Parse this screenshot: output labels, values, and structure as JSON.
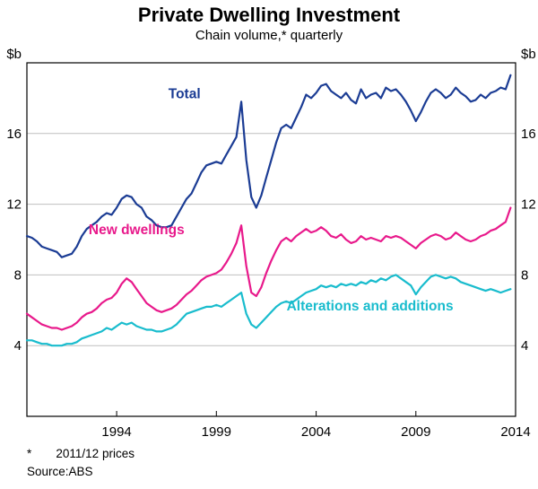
{
  "header": {
    "title": "Private Dwelling Investment",
    "subtitle": "Chain volume,* quarterly"
  },
  "axis_units": {
    "left": "$b",
    "right": "$b"
  },
  "footnotes": [
    {
      "marker": "*",
      "text": "2011/12 prices"
    },
    {
      "marker": "Source:",
      "text": "ABS"
    }
  ],
  "colors": {
    "grid": "#bfbfbf",
    "axis": "#000000",
    "total": "#1B3C94",
    "new_dwellings": "#E8198B",
    "alterations": "#19BCCD"
  },
  "chart_data": {
    "type": "line",
    "title": "Private Dwelling Investment",
    "subtitle": "Chain volume,* quarterly",
    "ylabel": "$b",
    "ylim": [
      0,
      20
    ],
    "yticks": [
      4,
      8,
      12,
      16
    ],
    "xlim": [
      1989.5,
      2014.0
    ],
    "xticks": [
      1994,
      1999,
      2004,
      2009,
      2014
    ],
    "x_start": 1989.5,
    "x_step": 0.25,
    "grid": true,
    "legend_position": "inline-labels",
    "series": [
      {
        "name": "Total",
        "color": "#1B3C94",
        "label_pos": [
          1997.4,
          18.0
        ],
        "values": [
          10.2,
          10.1,
          9.9,
          9.6,
          9.5,
          9.4,
          9.3,
          9.0,
          9.1,
          9.2,
          9.6,
          10.2,
          10.6,
          10.8,
          11.0,
          11.3,
          11.5,
          11.4,
          11.8,
          12.3,
          12.5,
          12.4,
          12.0,
          11.8,
          11.3,
          11.1,
          10.8,
          10.7,
          10.7,
          10.8,
          11.3,
          11.8,
          12.3,
          12.6,
          13.2,
          13.8,
          14.2,
          14.3,
          14.4,
          14.3,
          14.8,
          15.3,
          15.8,
          17.8,
          14.5,
          12.4,
          11.8,
          12.5,
          13.5,
          14.5,
          15.5,
          16.3,
          16.5,
          16.3,
          16.9,
          17.5,
          18.2,
          18.0,
          18.3,
          18.7,
          18.8,
          18.4,
          18.2,
          18.0,
          18.3,
          17.9,
          17.7,
          18.5,
          18.0,
          18.2,
          18.3,
          18.0,
          18.6,
          18.4,
          18.5,
          18.2,
          17.8,
          17.3,
          16.7,
          17.2,
          17.8,
          18.3,
          18.5,
          18.3,
          18.0,
          18.2,
          18.6,
          18.3,
          18.1,
          17.8,
          17.9,
          18.2,
          18.0,
          18.3,
          18.4,
          18.6,
          18.5,
          19.3
        ]
      },
      {
        "name": "New dwellings",
        "color": "#E8198B",
        "label_pos": [
          1995.0,
          10.3
        ],
        "values": [
          5.8,
          5.6,
          5.4,
          5.2,
          5.1,
          5.0,
          5.0,
          4.9,
          5.0,
          5.1,
          5.3,
          5.6,
          5.8,
          5.9,
          6.1,
          6.4,
          6.6,
          6.7,
          7.0,
          7.5,
          7.8,
          7.6,
          7.2,
          6.8,
          6.4,
          6.2,
          6.0,
          5.9,
          6.0,
          6.1,
          6.3,
          6.6,
          6.9,
          7.1,
          7.4,
          7.7,
          7.9,
          8.0,
          8.1,
          8.3,
          8.7,
          9.2,
          9.8,
          10.8,
          8.5,
          7.0,
          6.8,
          7.3,
          8.1,
          8.8,
          9.4,
          9.9,
          10.1,
          9.9,
          10.2,
          10.4,
          10.6,
          10.4,
          10.5,
          10.7,
          10.5,
          10.2,
          10.1,
          10.3,
          10.0,
          9.8,
          9.9,
          10.2,
          10.0,
          10.1,
          10.0,
          9.9,
          10.2,
          10.1,
          10.2,
          10.1,
          9.9,
          9.7,
          9.5,
          9.8,
          10.0,
          10.2,
          10.3,
          10.2,
          10.0,
          10.1,
          10.4,
          10.2,
          10.0,
          9.9,
          10.0,
          10.2,
          10.3,
          10.5,
          10.6,
          10.8,
          11.0,
          11.8
        ]
      },
      {
        "name": "Alterations and additions",
        "color": "#19BCCD",
        "label_pos": [
          2006.7,
          6.0
        ],
        "values": [
          4.3,
          4.3,
          4.2,
          4.1,
          4.1,
          4.0,
          4.0,
          4.0,
          4.1,
          4.1,
          4.2,
          4.4,
          4.5,
          4.6,
          4.7,
          4.8,
          5.0,
          4.9,
          5.1,
          5.3,
          5.2,
          5.3,
          5.1,
          5.0,
          4.9,
          4.9,
          4.8,
          4.8,
          4.9,
          5.0,
          5.2,
          5.5,
          5.8,
          5.9,
          6.0,
          6.1,
          6.2,
          6.2,
          6.3,
          6.2,
          6.4,
          6.6,
          6.8,
          7.0,
          5.8,
          5.2,
          5.0,
          5.3,
          5.6,
          5.9,
          6.2,
          6.4,
          6.5,
          6.4,
          6.6,
          6.8,
          7.0,
          7.1,
          7.2,
          7.4,
          7.3,
          7.4,
          7.3,
          7.5,
          7.4,
          7.5,
          7.4,
          7.6,
          7.5,
          7.7,
          7.6,
          7.8,
          7.7,
          7.9,
          8.0,
          7.8,
          7.6,
          7.4,
          6.9,
          7.3,
          7.6,
          7.9,
          8.0,
          7.9,
          7.8,
          7.9,
          7.8,
          7.6,
          7.5,
          7.4,
          7.3,
          7.2,
          7.1,
          7.2,
          7.1,
          7.0,
          7.1,
          7.2
        ]
      }
    ]
  }
}
